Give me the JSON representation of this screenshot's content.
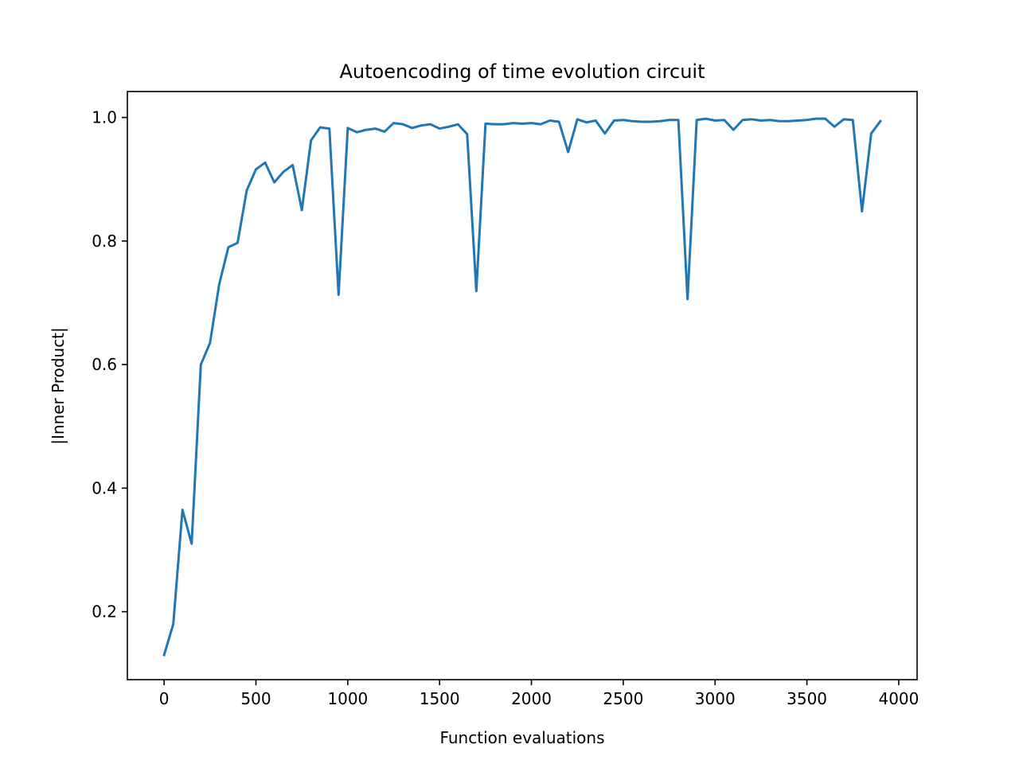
{
  "chart_data": {
    "type": "line",
    "title": "Autoencoding of time evolution circuit",
    "xlabel": "Function evaluations",
    "ylabel": "|Inner Product|",
    "xlim": [
      -200,
      4100
    ],
    "ylim": [
      0.09,
      1.042
    ],
    "xticks": [
      0,
      500,
      1000,
      1500,
      2000,
      2500,
      3000,
      3500,
      4000
    ],
    "xtick_labels": [
      "0",
      "500",
      "1000",
      "1500",
      "2000",
      "2500",
      "3000",
      "3500",
      "4000"
    ],
    "yticks": [
      0.2,
      0.4,
      0.6,
      0.8,
      1.0
    ],
    "ytick_labels": [
      "0.2",
      "0.4",
      "0.6",
      "0.8",
      "1.0"
    ],
    "grid": false,
    "series": [
      {
        "color": "#1f77b4",
        "x": [
          0,
          50,
          100,
          150,
          200,
          250,
          300,
          350,
          400,
          450,
          500,
          550,
          600,
          650,
          700,
          750,
          800,
          850,
          900,
          950,
          1000,
          1050,
          1100,
          1150,
          1200,
          1250,
          1300,
          1350,
          1400,
          1450,
          1500,
          1550,
          1600,
          1650,
          1700,
          1750,
          1800,
          1850,
          1900,
          1950,
          2000,
          2050,
          2100,
          2150,
          2200,
          2250,
          2300,
          2350,
          2400,
          2450,
          2500,
          2550,
          2600,
          2650,
          2700,
          2750,
          2800,
          2850,
          2900,
          2950,
          3000,
          3050,
          3100,
          3150,
          3200,
          3250,
          3300,
          3350,
          3400,
          3450,
          3500,
          3550,
          3600,
          3650,
          3700,
          3750,
          3800,
          3850,
          3900
        ],
        "y": [
          0.13,
          0.18,
          0.365,
          0.31,
          0.6,
          0.635,
          0.73,
          0.79,
          0.797,
          0.882,
          0.916,
          0.927,
          0.895,
          0.912,
          0.923,
          0.85,
          0.963,
          0.984,
          0.982,
          0.713,
          0.983,
          0.976,
          0.98,
          0.982,
          0.977,
          0.991,
          0.989,
          0.983,
          0.987,
          0.989,
          0.982,
          0.985,
          0.989,
          0.973,
          0.719,
          0.99,
          0.989,
          0.989,
          0.991,
          0.99,
          0.991,
          0.989,
          0.995,
          0.993,
          0.944,
          0.997,
          0.992,
          0.995,
          0.974,
          0.995,
          0.996,
          0.994,
          0.993,
          0.993,
          0.994,
          0.996,
          0.996,
          0.706,
          0.996,
          0.998,
          0.995,
          0.996,
          0.98,
          0.996,
          0.997,
          0.995,
          0.996,
          0.994,
          0.994,
          0.995,
          0.996,
          0.998,
          0.998,
          0.985,
          0.997,
          0.996,
          0.848,
          0.974,
          0.994
        ]
      }
    ]
  }
}
